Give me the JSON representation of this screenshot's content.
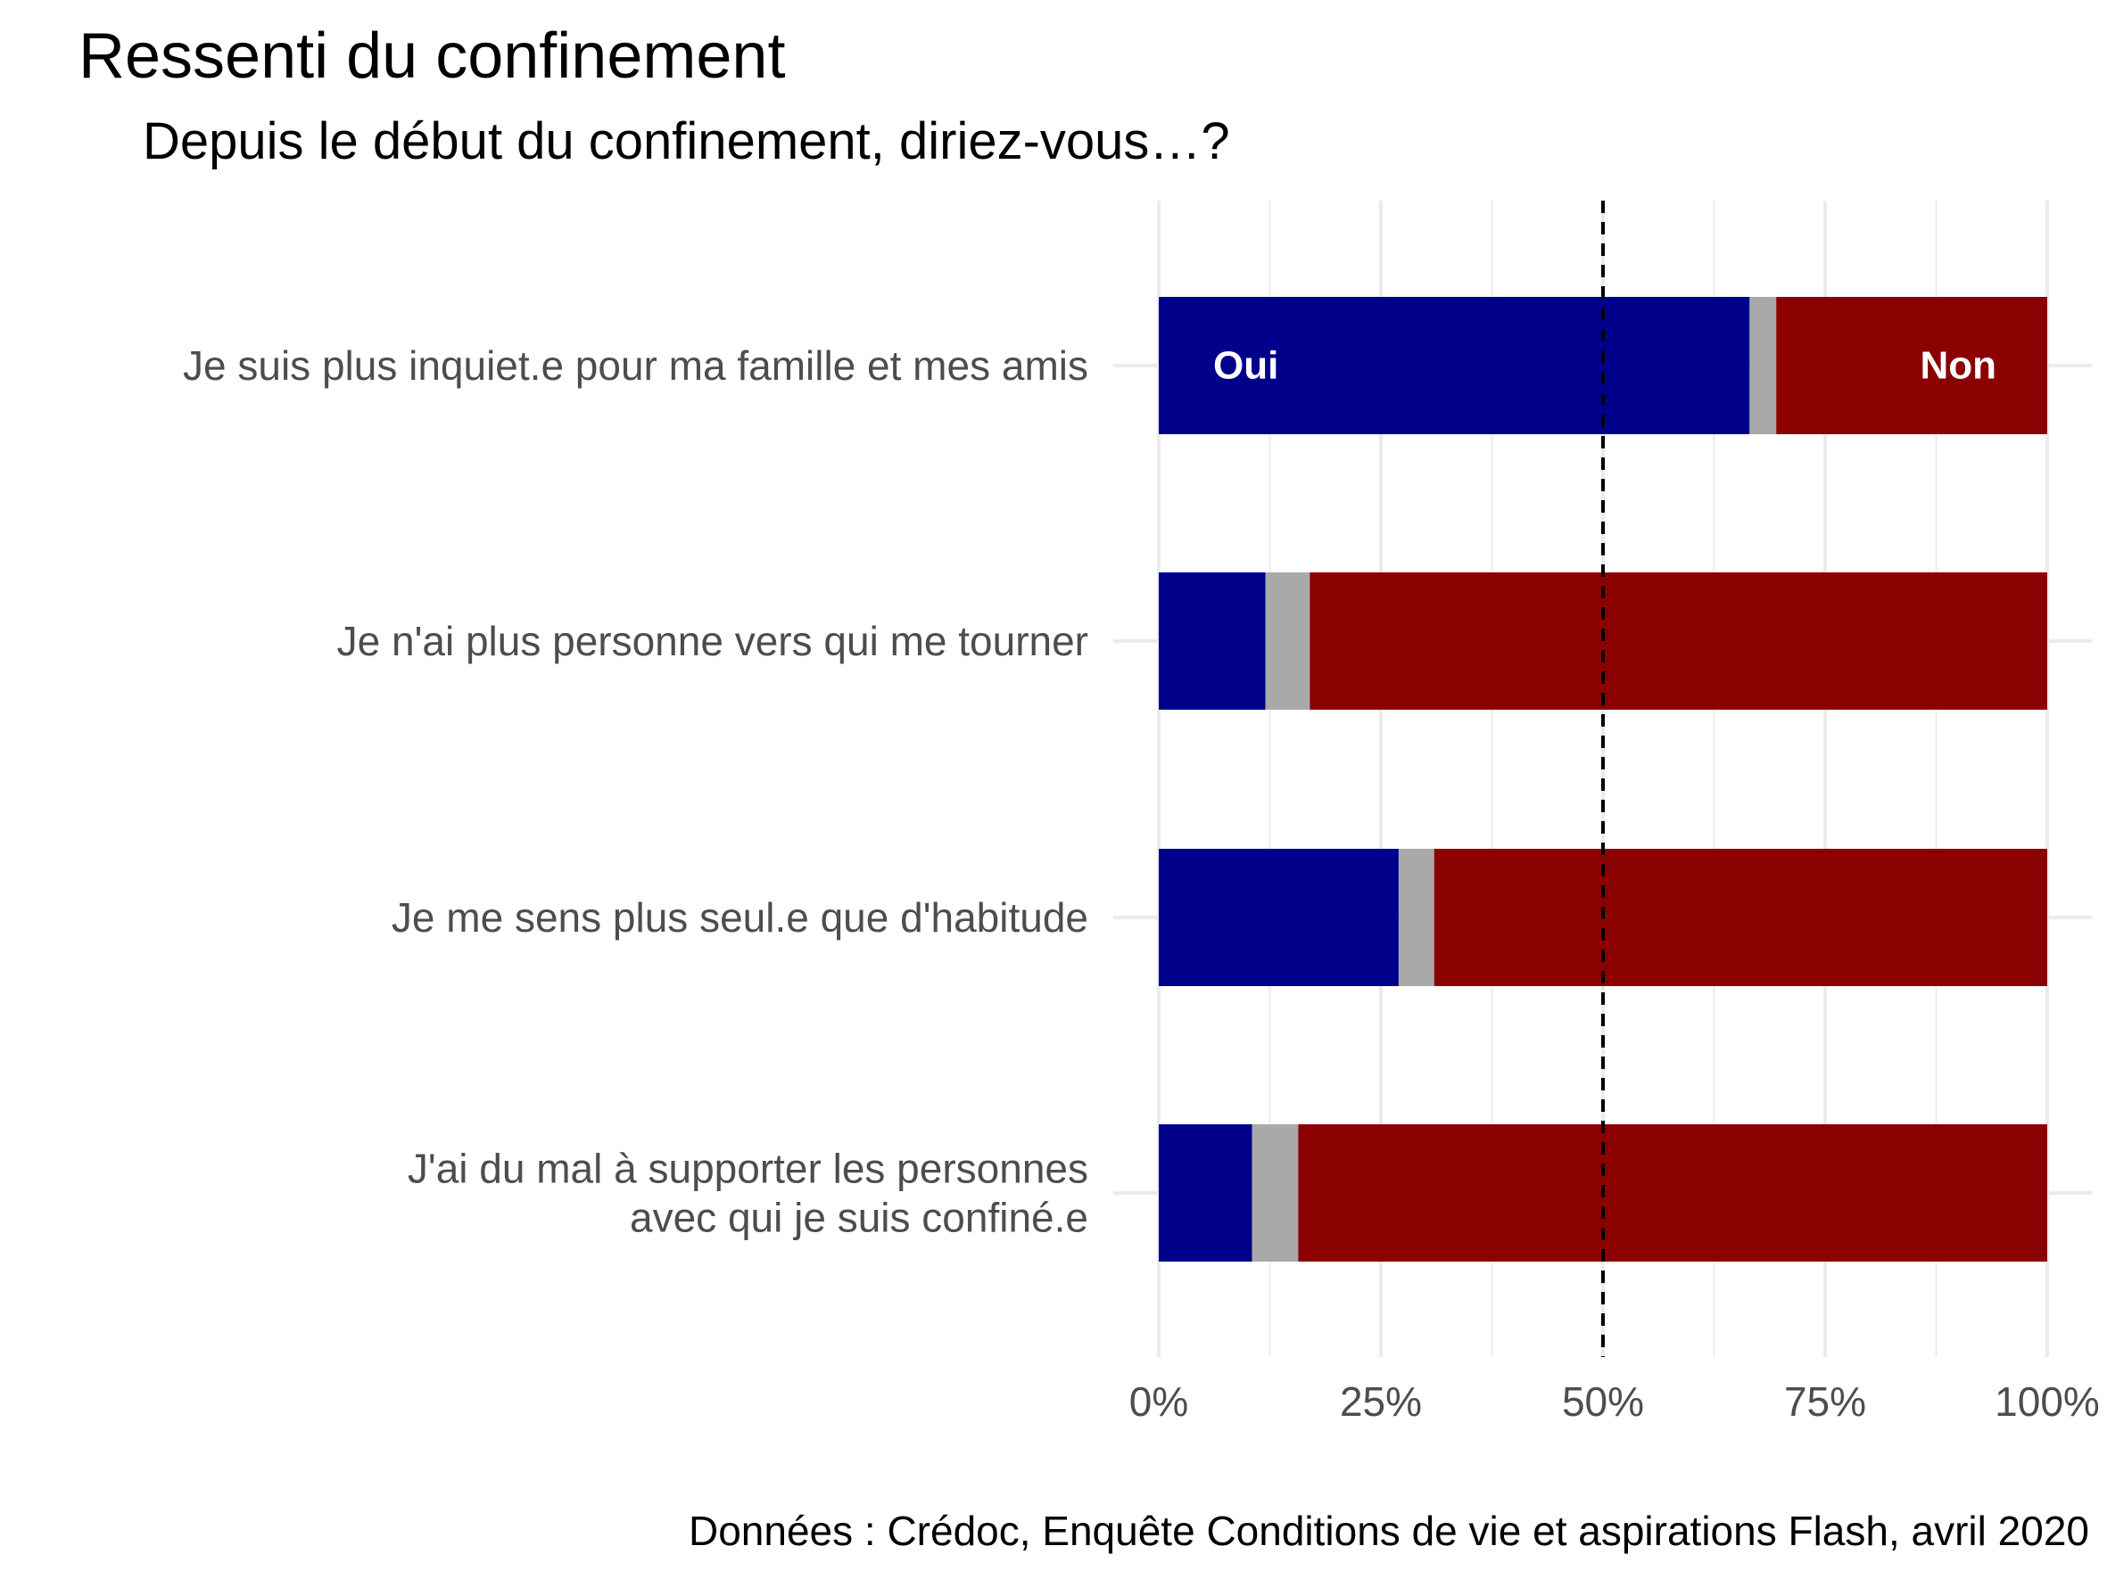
{
  "title": "Ressenti du confinement",
  "subtitle": "Depuis le début du confinement, diriez-vous…?",
  "caption": "Données : Crédoc, Enquête Conditions de vie et aspirations Flash, avril 2020",
  "colors": {
    "oui": "#00008B",
    "nsp": "#A9A9A9",
    "non": "#8B0000",
    "grid": "#EBEBEB",
    "reference": "#000000"
  },
  "chart_data": {
    "type": "bar",
    "orientation": "horizontal",
    "stacked": true,
    "title": "Ressenti du confinement",
    "subtitle": "Depuis le début du confinement, diriez-vous…?",
    "xlabel": "",
    "ylabel": "",
    "xlim": [
      0,
      100
    ],
    "x_ticks": [
      "0%",
      "25%",
      "50%",
      "75%",
      "100%"
    ],
    "reference_line": 50,
    "grid": true,
    "categories": [
      "Je suis plus inquiet.e pour ma famille et mes amis",
      "Je n'ai plus personne vers qui me tourner",
      "Je me sens plus seul.e que d'habitude",
      "J'ai du mal à supporter les personnes\navec qui je suis confiné.e"
    ],
    "series": [
      {
        "name": "Oui",
        "values": [
          66.5,
          12,
          27,
          10.5
        ]
      },
      {
        "name": "",
        "values": [
          3,
          5,
          4,
          5.2
        ]
      },
      {
        "name": "Non",
        "values": [
          30.5,
          83,
          69,
          84.3
        ]
      }
    ],
    "inline_labels": [
      "Oui",
      "Non"
    ]
  }
}
